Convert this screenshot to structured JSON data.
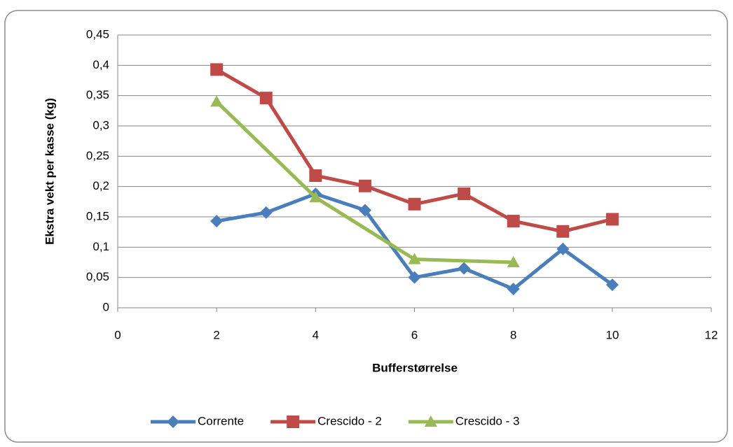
{
  "chart_data": {
    "type": "line",
    "xlabel": "Bufferstørrelse",
    "ylabel": "Ekstra vekt per kasse (kg)",
    "xlim": [
      0,
      12
    ],
    "xticks": [
      0,
      2,
      4,
      6,
      8,
      10,
      12
    ],
    "ylim": [
      0,
      0.45
    ],
    "yticks": [
      0,
      {
        "value": 0.05,
        "label": "0,05"
      },
      {
        "value": 0.1,
        "label": "0,1"
      },
      {
        "value": 0.15,
        "label": "0,15"
      },
      {
        "value": 0.2,
        "label": "0,2"
      },
      {
        "value": 0.25,
        "label": "0,25"
      },
      {
        "value": 0.3,
        "label": "0,3"
      },
      {
        "value": 0.35,
        "label": "0,35"
      },
      {
        "value": 0.4,
        "label": "0,4"
      },
      {
        "value": 0.45,
        "label": "0,45"
      }
    ],
    "grid": true,
    "legend": "bottom",
    "series": [
      {
        "name": "Corrente",
        "color": "#4a7ebb",
        "marker": "diamond",
        "x": [
          2,
          3,
          4,
          5,
          6,
          7,
          8,
          9,
          10
        ],
        "values": [
          0.143,
          0.157,
          0.188,
          0.161,
          0.05,
          0.065,
          0.031,
          0.097,
          0.038
        ]
      },
      {
        "name": "Crescido - 2",
        "color": "#be4b48",
        "marker": "square",
        "x": [
          2,
          3,
          4,
          5,
          6,
          7,
          8,
          9,
          10
        ],
        "values": [
          0.393,
          0.346,
          0.218,
          0.201,
          0.171,
          0.188,
          0.143,
          0.126,
          0.146
        ]
      },
      {
        "name": "Crescido - 3",
        "color": "#98b954",
        "marker": "triangle",
        "x": [
          2,
          4,
          6,
          8
        ],
        "values": [
          0.34,
          0.182,
          0.08,
          0.075
        ]
      }
    ]
  }
}
